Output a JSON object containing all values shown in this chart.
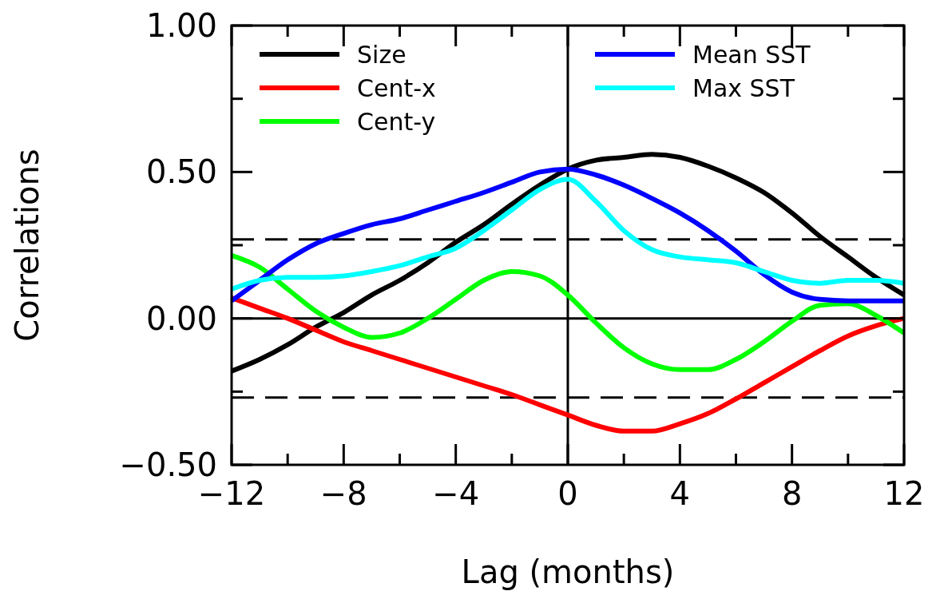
{
  "chart_data": {
    "type": "line",
    "xlabel": "Lag (months)",
    "ylabel": "Correlations",
    "x": [
      -12,
      -11,
      -10,
      -9,
      -8,
      -7,
      -6,
      -5,
      -4,
      -3,
      -2,
      -1,
      0,
      1,
      2,
      3,
      4,
      5,
      6,
      7,
      8,
      9,
      10,
      11,
      12
    ],
    "series": [
      {
        "name": "Size",
        "color": "#000000",
        "values": [
          -0.18,
          -0.14,
          -0.09,
          -0.03,
          0.02,
          0.08,
          0.13,
          0.19,
          0.26,
          0.32,
          0.39,
          0.455,
          0.51,
          0.54,
          0.55,
          0.56,
          0.55,
          0.52,
          0.48,
          0.43,
          0.36,
          0.28,
          0.21,
          0.14,
          0.08
        ]
      },
      {
        "name": "Cent-x",
        "color": "#ff0000",
        "values": [
          0.07,
          0.035,
          0.0,
          -0.04,
          -0.08,
          -0.11,
          -0.14,
          -0.17,
          -0.2,
          -0.23,
          -0.26,
          -0.295,
          -0.33,
          -0.365,
          -0.385,
          -0.385,
          -0.36,
          -0.325,
          -0.275,
          -0.22,
          -0.165,
          -0.11,
          -0.06,
          -0.025,
          0.0
        ]
      },
      {
        "name": "Cent-y",
        "color": "#00ff00",
        "values": [
          0.215,
          0.175,
          0.1,
          0.025,
          -0.03,
          -0.065,
          -0.05,
          0.0,
          0.065,
          0.13,
          0.16,
          0.145,
          0.08,
          -0.015,
          -0.1,
          -0.155,
          -0.175,
          -0.175,
          -0.14,
          -0.08,
          -0.01,
          0.045,
          0.05,
          0.01,
          -0.05
        ]
      },
      {
        "name": "Mean SST",
        "color": "#0000ff",
        "values": [
          0.06,
          0.13,
          0.2,
          0.255,
          0.29,
          0.32,
          0.34,
          0.37,
          0.4,
          0.43,
          0.465,
          0.5,
          0.51,
          0.49,
          0.455,
          0.41,
          0.36,
          0.3,
          0.23,
          0.15,
          0.09,
          0.065,
          0.06,
          0.06,
          0.06
        ]
      },
      {
        "name": "Max SST",
        "color": "#00ffff",
        "values": [
          0.1,
          0.13,
          0.14,
          0.14,
          0.145,
          0.16,
          0.18,
          0.21,
          0.24,
          0.3,
          0.37,
          0.44,
          0.475,
          0.4,
          0.3,
          0.235,
          0.21,
          0.2,
          0.19,
          0.16,
          0.13,
          0.12,
          0.13,
          0.13,
          0.12
        ]
      }
    ],
    "xlim": [
      -12,
      12
    ],
    "xticks": [
      {
        "value": -12,
        "label": "−12"
      },
      {
        "value": -10,
        "label": null
      },
      {
        "value": -8,
        "label": "−8"
      },
      {
        "value": -6,
        "label": null
      },
      {
        "value": -4,
        "label": "−4"
      },
      {
        "value": -2,
        "label": null
      },
      0,
      {
        "value": 2,
        "label": null
      },
      4,
      {
        "value": 6,
        "label": null
      },
      8,
      {
        "value": 10,
        "label": null
      },
      12
    ],
    "ylim": [
      -0.5,
      1
    ],
    "yticks": [
      {
        "value": -0.5,
        "label": "−0.50"
      },
      {
        "value": -0.25,
        "label": null
      },
      {
        "value": 0,
        "label": "0.00"
      },
      {
        "value": 0.25,
        "label": null
      },
      {
        "value": 0.5,
        "label": "0.50"
      },
      {
        "value": 0.75,
        "label": null
      },
      {
        "value": 1,
        "label": "1.00"
      }
    ],
    "ref_lines": [
      {
        "axis": "x",
        "value": 0,
        "color": "#000000",
        "line_style": "solid"
      },
      {
        "axis": "y",
        "value": 0,
        "color": "#000000",
        "line_style": "solid"
      },
      {
        "axis": "y",
        "value": 0.27,
        "color": "#000000",
        "line_style": "dashed"
      },
      {
        "axis": "y",
        "value": -0.27,
        "color": "#000000",
        "line_style": "dashed"
      }
    ],
    "grid": false,
    "legend": "top",
    "line_style": "solid",
    "marker": "none"
  }
}
